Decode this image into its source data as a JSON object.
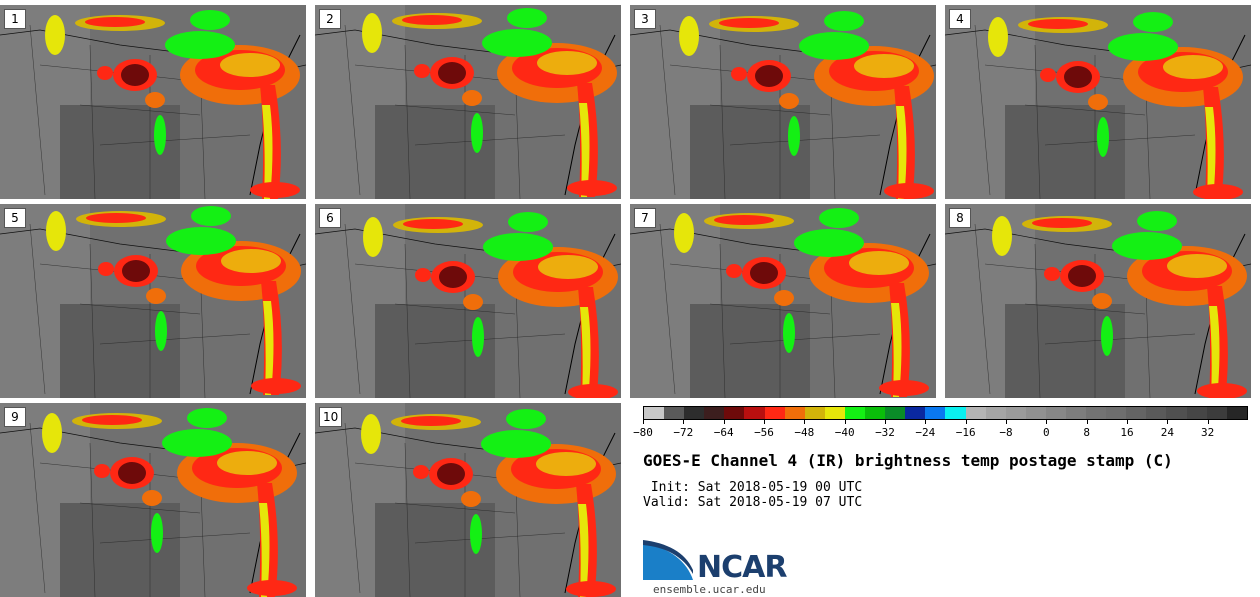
{
  "panels": [
    {
      "label": "1"
    },
    {
      "label": "2"
    },
    {
      "label": "3"
    },
    {
      "label": "4"
    },
    {
      "label": "5"
    },
    {
      "label": "6"
    },
    {
      "label": "7"
    },
    {
      "label": "8"
    },
    {
      "label": "9"
    },
    {
      "label": "10"
    }
  ],
  "colorbar": {
    "colors": [
      "#c8c8c8",
      "#5a5a5a",
      "#2d2d2d",
      "#3c1e1e",
      "#6e0a0a",
      "#b90f0f",
      "#ff2814",
      "#f06e0a",
      "#d2b40a",
      "#e6e60a",
      "#14f014",
      "#0abe0a",
      "#0a8c28",
      "#0a28a0",
      "#0a78f0",
      "#0af0f0",
      "#b4b4b4",
      "#a5a5a5",
      "#9b9b9b",
      "#919191",
      "#878787",
      "#7d7d7d",
      "#737373",
      "#6e6e6e",
      "#646464",
      "#5a5a5a",
      "#505050",
      "#464646",
      "#3c3c3c",
      "#262626"
    ],
    "ticks": [
      "−80",
      "−72",
      "−64",
      "−56",
      "−48",
      "−40",
      "−32",
      "−24",
      "−16",
      "−8",
      "0",
      "8",
      "16",
      "24",
      "32"
    ]
  },
  "title": "GOES-E Channel 4 (IR) brightness temp postage stamp (C)",
  "init_text": " Init: Sat 2018-05-19 00 UTC",
  "valid_text": "Valid: Sat 2018-05-19 07 UTC",
  "logo": {
    "name": "NCAR",
    "url": "ensemble.ucar.edu",
    "brand_color": "#1c3f6e",
    "accent_color": "#1a7fc8"
  }
}
